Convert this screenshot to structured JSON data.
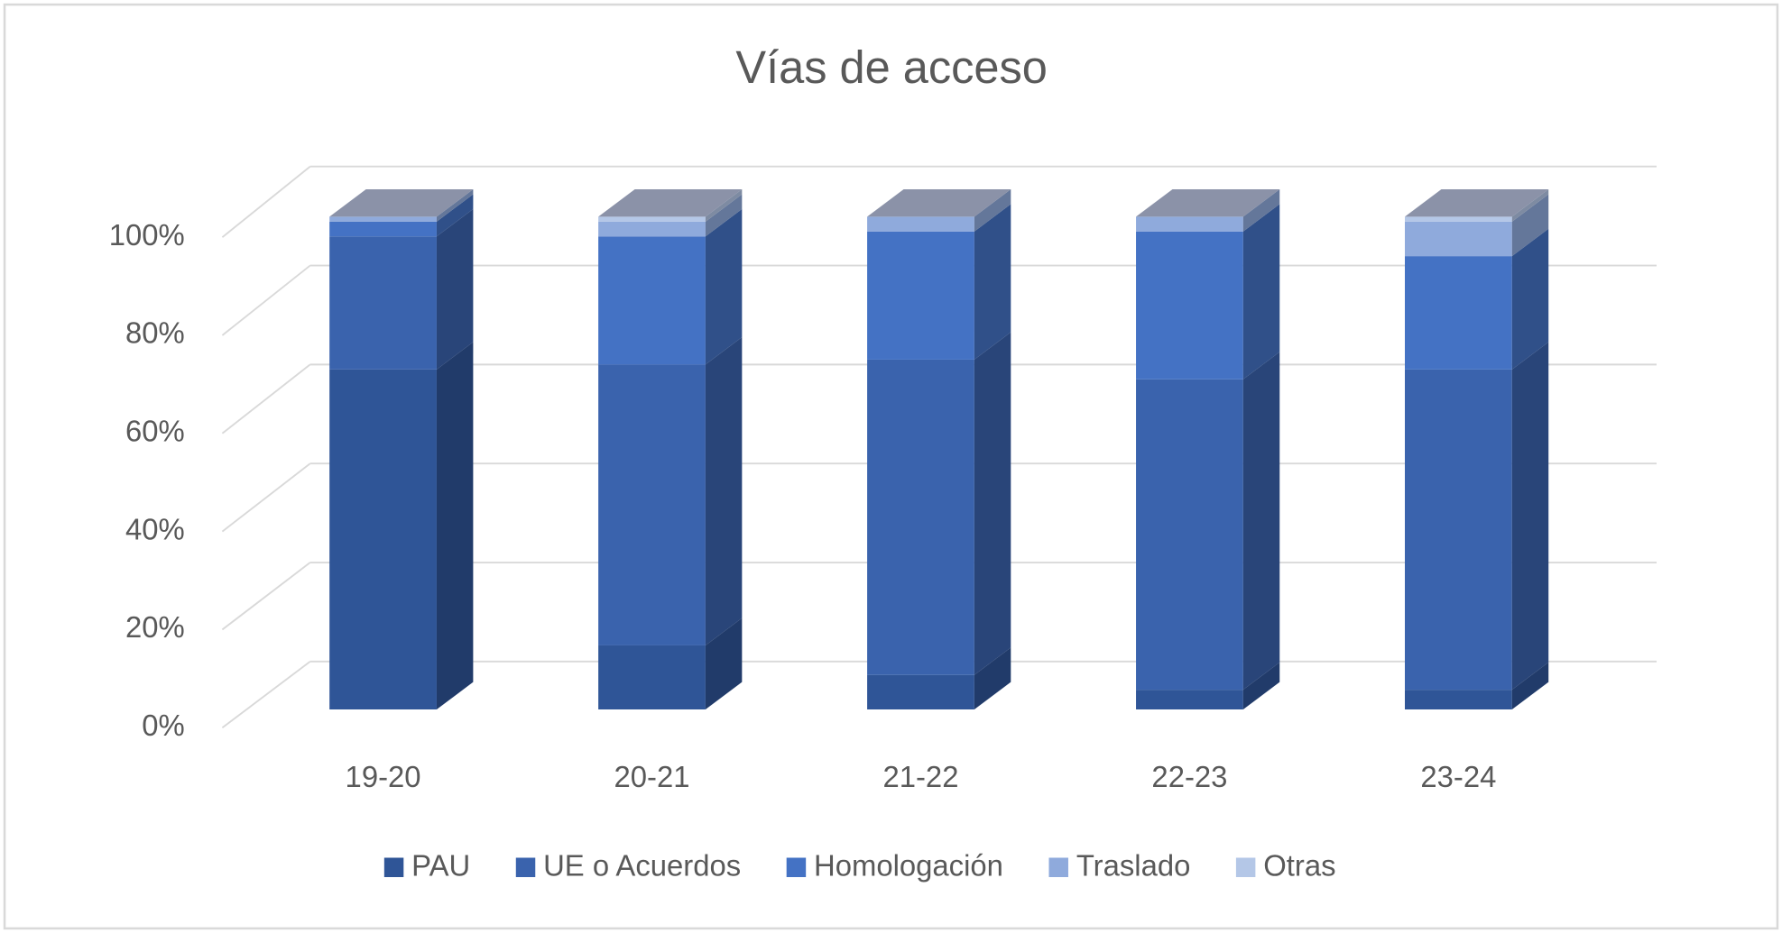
{
  "chart_data": {
    "type": "bar3d_stacked",
    "title": "Vías de acceso",
    "categories": [
      "19-20",
      "20-21",
      "21-22",
      "22-23",
      "23-24"
    ],
    "series": [
      {
        "name": "PAU",
        "color": "#2f5597",
        "values": [
          69,
          13,
          7,
          4,
          4
        ]
      },
      {
        "name": "UE o Acuerdos",
        "color": "#3a63ad",
        "values": [
          27,
          57,
          64,
          63,
          65
        ]
      },
      {
        "name": "Homologación",
        "color": "#4472c4",
        "values": [
          3,
          26,
          26,
          30,
          23
        ]
      },
      {
        "name": "Traslado",
        "color": "#8faadc",
        "values": [
          1,
          3,
          3,
          3,
          7
        ]
      },
      {
        "name": "Otras",
        "color": "#b4c7e7",
        "values": [
          0,
          1,
          0,
          0,
          1
        ]
      }
    ],
    "ylim": [
      0,
      100
    ],
    "yticks": [
      {
        "value": 0,
        "label": "0%"
      },
      {
        "value": 20,
        "label": "20%"
      },
      {
        "value": 40,
        "label": "40%"
      },
      {
        "value": 60,
        "label": "60%"
      },
      {
        "value": 80,
        "label": "80%"
      },
      {
        "value": 100,
        "label": "100%"
      }
    ],
    "grid": true,
    "legend": "bottom"
  }
}
